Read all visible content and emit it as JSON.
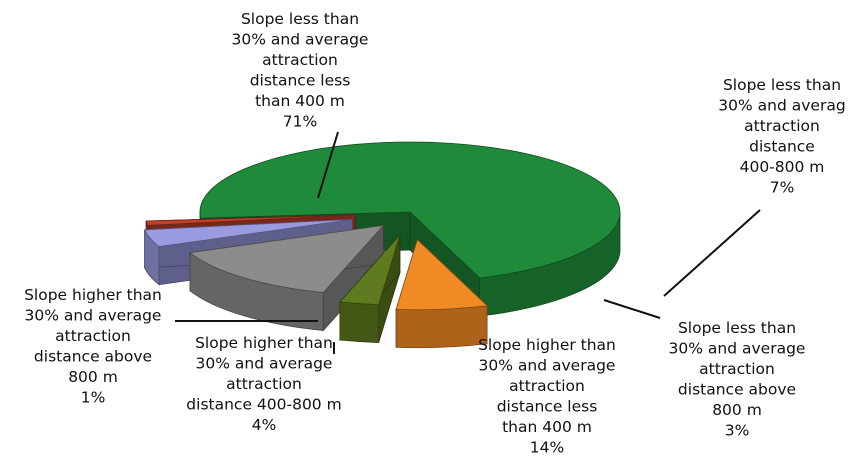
{
  "chart_data": {
    "type": "pie",
    "title": "",
    "style": "3d-exploded",
    "categories": [
      "Slope less than 30% and average attraction distance less than 400 m",
      "Slope less than 30% and average attraction distance 400-800 m",
      "Slope less than 30% and average attraction distance above 800 m",
      "Slope higher than 30% and average attraction distance less than 400 m",
      "Slope higher than 30% and average attraction distance 400-800 m",
      "Slope higher than 30% and average attraction distance above 800 m"
    ],
    "values": [
      71,
      7,
      3,
      14,
      4,
      1
    ],
    "colors": [
      "#1f8a3a",
      "#f08a24",
      "#5f7a1f",
      "#8c8c8c",
      "#9a9ae0",
      "#c0402a"
    ],
    "labels": [
      {
        "lines": [
          "Slope less than",
          "30% and average",
          "attraction",
          "distance less",
          "than 400 m",
          "71%"
        ]
      },
      {
        "lines": [
          "Slope less than",
          "30% and averag",
          "attraction",
          "distance",
          "400-800 m",
          "7%"
        ]
      },
      {
        "lines": [
          "Slope less than",
          "30% and average",
          "attraction",
          "distance above",
          "800 m",
          "3%"
        ]
      },
      {
        "lines": [
          "Slope higher than",
          "30% and average",
          "attraction",
          "distance less",
          "than 400 m",
          "14%"
        ]
      },
      {
        "lines": [
          "Slope higher than",
          "30% and average",
          "attraction",
          "distance 400-800 m",
          "",
          "4%"
        ]
      },
      {
        "lines": [
          "Slope higher than",
          "30% and average",
          "attraction",
          "distance above",
          "800 m",
          "1%"
        ]
      }
    ]
  }
}
